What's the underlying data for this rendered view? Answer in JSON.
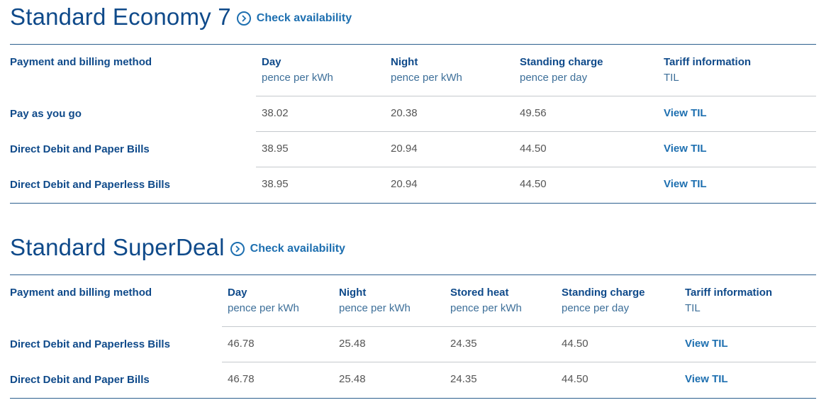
{
  "tariff1": {
    "title": "Standard Economy 7",
    "check_availability": "Check availability",
    "headers": {
      "method": "Payment and billing method",
      "day": "Day",
      "day_unit": "pence per kWh",
      "night": "Night",
      "night_unit": "pence per kWh",
      "standing": "Standing charge",
      "standing_unit": "pence per day",
      "tariff": "Tariff information",
      "tariff_unit": "TIL"
    },
    "rows": [
      {
        "method": "Pay as you go",
        "day": "38.02",
        "night": "20.38",
        "standing": "49.56",
        "link": "View TIL"
      },
      {
        "method": "Direct Debit and Paper Bills",
        "day": "38.95",
        "night": "20.94",
        "standing": "44.50",
        "link": "View TIL"
      },
      {
        "method": "Direct Debit and Paperless Bills",
        "day": "38.95",
        "night": "20.94",
        "standing": "44.50",
        "link": "View TIL"
      }
    ]
  },
  "tariff2": {
    "title": "Standard SuperDeal",
    "check_availability": "Check availability",
    "headers": {
      "method": "Payment and billing method",
      "day": "Day",
      "day_unit": "pence per kWh",
      "night": "Night",
      "night_unit": "pence per kWh",
      "stored": "Stored heat",
      "stored_unit": "pence per kWh",
      "standing": "Standing charge",
      "standing_unit": "pence per day",
      "tariff": "Tariff information",
      "tariff_unit": "TIL"
    },
    "rows": [
      {
        "method": "Direct Debit and Paperless Bills",
        "day": "46.78",
        "night": "25.48",
        "stored": "24.35",
        "standing": "44.50",
        "link": "View TIL"
      },
      {
        "method": "Direct Debit and Paper Bills",
        "day": "46.78",
        "night": "25.48",
        "stored": "24.35",
        "standing": "44.50",
        "link": "View TIL"
      }
    ]
  },
  "icons": {
    "availability": "chevron-right-circle-icon"
  },
  "colors": {
    "heading": "#0f4a8a",
    "link": "#1d6fb0",
    "divider": "#c5c9cd",
    "rule": "#2c5f8e"
  }
}
